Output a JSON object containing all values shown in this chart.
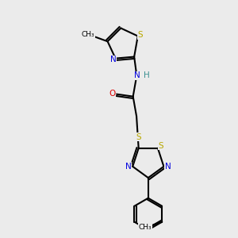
{
  "bg_color": "#ebebeb",
  "atom_colors": {
    "S": "#b8a800",
    "N": "#0000dd",
    "O": "#dd0000",
    "C": "#000000",
    "H": "#3a9090"
  },
  "line_color": "#000000",
  "line_width": 1.5,
  "fig_size": [
    3.0,
    3.0
  ],
  "dpi": 100
}
